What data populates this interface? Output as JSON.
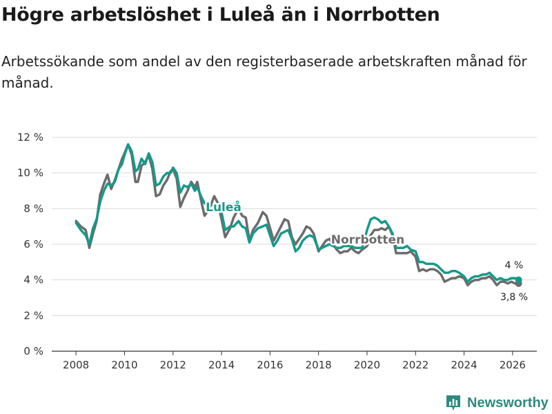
{
  "chart_data": {
    "type": "line",
    "title": "Högre arbetslöshet i Luleå än i Norrbotten",
    "subtitle": "Arbetssökande som andel av den registerbaserade arbetskraften månad för månad.",
    "xlabel": "",
    "ylabel": "",
    "ylim": [
      0,
      12
    ],
    "xlim": [
      2007.0,
      2027.0
    ],
    "y_ticks": [
      "0 %",
      "2 %",
      "4 %",
      "6 %",
      "8 %",
      "10 %",
      "12 %"
    ],
    "x_ticks": [
      "2008",
      "2010",
      "2012",
      "2014",
      "2016",
      "2018",
      "2020",
      "2022",
      "2024",
      "2026"
    ],
    "grid": true,
    "series": [
      {
        "name": "Norrbotten",
        "color": "#6b6b6b",
        "end_label": "3,8 %",
        "x": [
          2008.0,
          2008.2,
          2008.4,
          2008.55,
          2008.7,
          2008.85,
          2009.0,
          2009.15,
          2009.3,
          2009.45,
          2009.6,
          2009.75,
          2009.9,
          2010.0,
          2010.15,
          2010.3,
          2010.45,
          2010.55,
          2010.7,
          2010.85,
          2011.0,
          2011.15,
          2011.3,
          2011.45,
          2011.6,
          2011.75,
          2011.9,
          2012.0,
          2012.15,
          2012.3,
          2012.45,
          2012.6,
          2012.75,
          2012.9,
          2013.0,
          2013.15,
          2013.3,
          2013.5,
          2013.7,
          2013.85,
          2014.0,
          2014.15,
          2014.35,
          2014.5,
          2014.7,
          2014.85,
          2015.0,
          2015.15,
          2015.3,
          2015.5,
          2015.7,
          2015.85,
          2016.0,
          2016.15,
          2016.3,
          2016.45,
          2016.6,
          2016.75,
          2016.9,
          2017.05,
          2017.2,
          2017.35,
          2017.5,
          2017.65,
          2017.8,
          2018.0,
          2018.15,
          2018.3,
          2018.45,
          2018.6,
          2018.75,
          2018.9,
          2019.05,
          2019.2,
          2019.35,
          2019.5,
          2019.65,
          2019.8,
          2020.0,
          2020.15,
          2020.3,
          2020.45,
          2020.6,
          2020.75,
          2020.9,
          2021.05,
          2021.2,
          2021.35,
          2021.5,
          2021.65,
          2021.8,
          2022.0,
          2022.15,
          2022.3,
          2022.45,
          2022.6,
          2022.75,
          2022.9,
          2023.05,
          2023.2,
          2023.35,
          2023.5,
          2023.65,
          2023.8,
          2024.0,
          2024.15,
          2024.3,
          2024.45,
          2024.6,
          2024.75,
          2024.9,
          2025.05,
          2025.2,
          2025.35,
          2025.5,
          2025.65,
          2025.8,
          2025.95,
          2026.1,
          2026.25
        ],
        "values": [
          7.3,
          7.0,
          6.8,
          5.8,
          6.6,
          7.3,
          8.8,
          9.4,
          9.9,
          9.1,
          9.6,
          10.2,
          10.8,
          11.1,
          11.6,
          11.0,
          9.5,
          9.5,
          10.4,
          10.6,
          11.0,
          10.2,
          8.7,
          8.8,
          9.3,
          9.6,
          10.1,
          10.2,
          9.7,
          8.1,
          8.6,
          9.0,
          9.5,
          9.2,
          9.5,
          8.5,
          7.6,
          8.0,
          8.7,
          8.3,
          7.4,
          6.4,
          6.9,
          7.5,
          8.0,
          7.6,
          7.5,
          6.2,
          6.8,
          7.2,
          7.8,
          7.6,
          6.9,
          6.2,
          6.6,
          7.0,
          7.4,
          7.3,
          6.4,
          6.0,
          6.3,
          6.6,
          7.0,
          6.9,
          6.6,
          5.6,
          5.9,
          6.2,
          6.3,
          6.0,
          5.7,
          5.5,
          5.6,
          5.6,
          5.8,
          5.6,
          5.5,
          5.7,
          5.9,
          6.5,
          6.8,
          6.8,
          6.9,
          6.8,
          7.0,
          6.5,
          5.5,
          5.5,
          5.5,
          5.5,
          5.6,
          5.3,
          4.5,
          4.6,
          4.5,
          4.6,
          4.6,
          4.5,
          4.3,
          3.9,
          4.0,
          4.1,
          4.1,
          4.2,
          4.1,
          3.7,
          3.9,
          4.0,
          4.0,
          4.1,
          4.1,
          4.2,
          4.0,
          3.7,
          3.9,
          3.9,
          3.8,
          3.9,
          3.8,
          3.8
        ],
        "label_text": "Norrbotten"
      },
      {
        "name": "Luleå",
        "color": "#16998a",
        "end_label": "4 %",
        "x": [
          2008.0,
          2008.2,
          2008.4,
          2008.55,
          2008.7,
          2008.85,
          2009.0,
          2009.15,
          2009.3,
          2009.45,
          2009.6,
          2009.75,
          2009.9,
          2010.0,
          2010.15,
          2010.3,
          2010.45,
          2010.55,
          2010.7,
          2010.85,
          2011.0,
          2011.15,
          2011.3,
          2011.45,
          2011.6,
          2011.75,
          2011.9,
          2012.0,
          2012.15,
          2012.3,
          2012.45,
          2012.6,
          2012.75,
          2012.9,
          2013.0,
          2013.15,
          2013.3,
          2013.5,
          2013.7,
          2013.85,
          2014.0,
          2014.15,
          2014.35,
          2014.5,
          2014.7,
          2014.85,
          2015.0,
          2015.15,
          2015.3,
          2015.5,
          2015.7,
          2015.85,
          2016.0,
          2016.15,
          2016.3,
          2016.45,
          2016.6,
          2016.75,
          2016.9,
          2017.05,
          2017.2,
          2017.35,
          2017.5,
          2017.65,
          2017.8,
          2018.0,
          2018.15,
          2018.3,
          2018.45,
          2018.6,
          2018.75,
          2018.9,
          2019.05,
          2019.2,
          2019.35,
          2019.5,
          2019.65,
          2019.8,
          2020.0,
          2020.15,
          2020.3,
          2020.45,
          2020.6,
          2020.75,
          2020.9,
          2021.05,
          2021.2,
          2021.35,
          2021.5,
          2021.65,
          2021.8,
          2022.0,
          2022.15,
          2022.3,
          2022.45,
          2022.6,
          2022.75,
          2022.9,
          2023.05,
          2023.2,
          2023.35,
          2023.5,
          2023.65,
          2023.8,
          2024.0,
          2024.15,
          2024.3,
          2024.45,
          2024.6,
          2024.75,
          2024.9,
          2025.05,
          2025.2,
          2025.35,
          2025.5,
          2025.65,
          2025.8,
          2025.95,
          2026.1,
          2026.25
        ],
        "values": [
          7.2,
          6.8,
          6.5,
          6.0,
          6.9,
          7.4,
          8.4,
          9.0,
          9.4,
          9.3,
          9.5,
          10.2,
          10.5,
          11.0,
          11.6,
          11.2,
          10.1,
          10.2,
          10.8,
          10.5,
          11.1,
          10.6,
          9.3,
          9.4,
          9.8,
          10.0,
          10.0,
          10.3,
          10.0,
          8.9,
          9.3,
          9.2,
          9.4,
          9.0,
          9.2,
          8.7,
          8.3,
          8.2,
          8.2,
          8.3,
          7.8,
          6.8,
          7.0,
          7.0,
          7.3,
          7.0,
          6.9,
          6.1,
          6.6,
          6.9,
          7.0,
          7.1,
          6.5,
          5.9,
          6.2,
          6.6,
          6.7,
          6.8,
          6.3,
          5.6,
          5.8,
          6.2,
          6.4,
          6.5,
          6.4,
          5.7,
          5.8,
          5.9,
          6.0,
          5.9,
          5.8,
          5.8,
          5.9,
          5.9,
          5.9,
          5.8,
          5.8,
          5.8,
          6.8,
          7.4,
          7.5,
          7.4,
          7.2,
          7.3,
          7.0,
          6.6,
          5.8,
          5.8,
          5.8,
          5.9,
          5.7,
          5.6,
          5.0,
          5.0,
          4.9,
          4.9,
          4.9,
          4.8,
          4.6,
          4.4,
          4.4,
          4.5,
          4.5,
          4.4,
          4.2,
          3.9,
          4.1,
          4.2,
          4.2,
          4.3,
          4.3,
          4.4,
          4.2,
          4.0,
          4.1,
          4.0,
          4.0,
          4.1,
          4.1,
          4.0
        ],
        "label_text": "Luleå"
      }
    ]
  },
  "brand": {
    "name": "Newsworthy"
  }
}
